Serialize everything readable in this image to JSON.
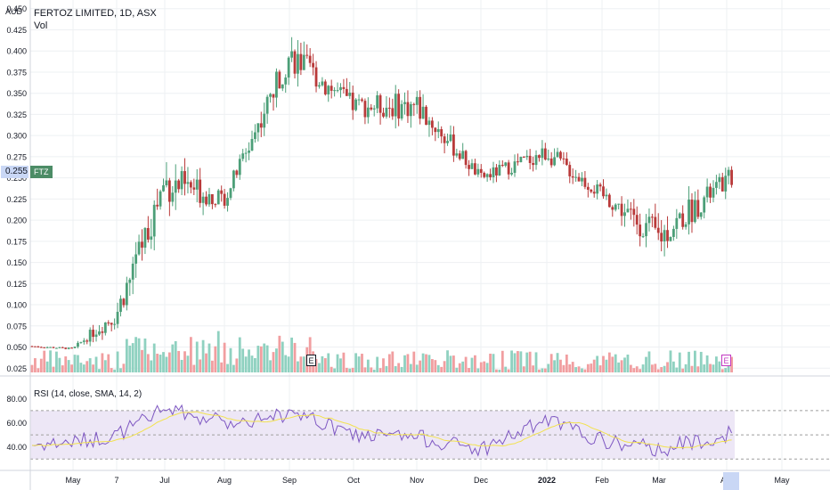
{
  "header": {
    "title": "FERTOZ LIMITED, 1D, ASX",
    "volume_label": "Vol",
    "currency": "AUD"
  },
  "price_axis": {
    "ticks": [
      "0.450",
      "0.425",
      "0.400",
      "0.375",
      "0.350",
      "0.325",
      "0.300",
      "0.275",
      "0.250",
      "0.225",
      "0.200",
      "0.175",
      "0.150",
      "0.125",
      "0.100",
      "0.075",
      "0.050",
      "0.025"
    ],
    "current_price": "0.255",
    "symbol_tag": "FTZ"
  },
  "rsi_panel": {
    "label": "RSI (14, close, SMA, 14, 2)",
    "ticks": [
      "80.00",
      "60.00",
      "40.00"
    ]
  },
  "time_axis": {
    "labels": [
      "May",
      "7",
      "Jul",
      "Aug",
      "Sep",
      "Oct",
      "Nov",
      "Dec",
      "2022",
      "Feb",
      "Mar",
      "Apr",
      "May"
    ]
  },
  "events": {
    "earnings_past": "E",
    "earnings_future": "E"
  },
  "colors": {
    "up": "#4c9f78",
    "down": "#b93a3a",
    "vol_up": "#8fd1c0",
    "vol_down": "#f19ea0",
    "rsi_line": "#7e57c2",
    "rsi_ma": "#f2e24e",
    "rsi_band": "#ede7f6",
    "grid": "#eef0f3"
  },
  "chart_data": {
    "type": "candlestick",
    "title": "FERTOZ LIMITED, 1D, ASX",
    "ylim": [
      0.02,
      0.455
    ],
    "x": [
      "2021-04 end",
      "2021-05",
      "2021-06",
      "2021-07",
      "2021-08",
      "2021-09",
      "2021-10",
      "2021-11",
      "2021-12",
      "2022-01",
      "2022-02",
      "2022-03",
      "2022-04 start"
    ],
    "series": [
      {
        "name": "close",
        "values": [
          0.051,
          0.048,
          0.09,
          0.245,
          0.225,
          0.395,
          0.335,
          0.335,
          0.25,
          0.28,
          0.23,
          0.18,
          0.255
        ]
      },
      {
        "name": "high",
        "values": [
          0.053,
          0.053,
          0.19,
          0.325,
          0.27,
          0.452,
          0.4,
          0.425,
          0.295,
          0.32,
          0.265,
          0.32,
          0.32
        ]
      },
      {
        "name": "low",
        "values": [
          0.046,
          0.046,
          0.075,
          0.13,
          0.195,
          0.31,
          0.3,
          0.29,
          0.24,
          0.23,
          0.195,
          0.16,
          0.24
        ]
      }
    ],
    "rsi": {
      "values": [
        42,
        44,
        50,
        72,
        60,
        68,
        50,
        48,
        38,
        62,
        45,
        38,
        52
      ],
      "ylim": [
        25,
        95
      ],
      "bands": [
        30,
        70
      ]
    }
  }
}
